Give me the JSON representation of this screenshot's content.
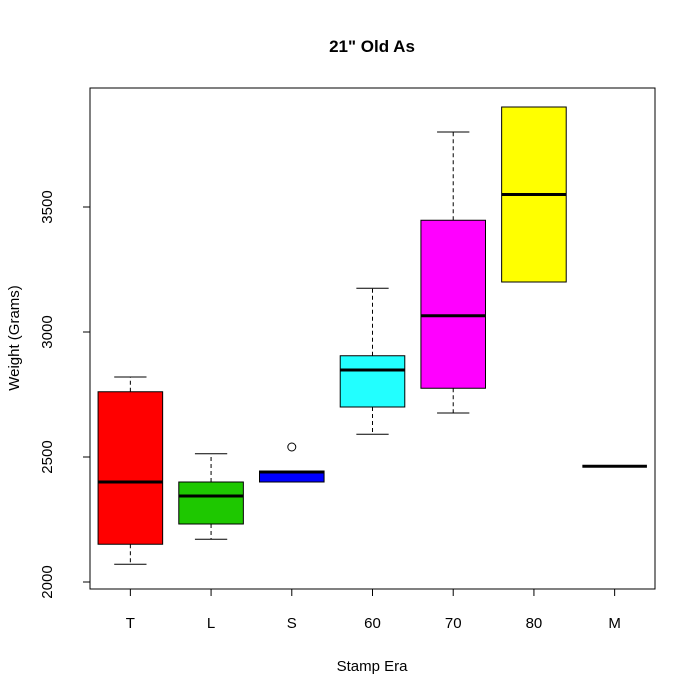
{
  "chart_data": {
    "type": "boxplot",
    "title": "21\" Old As",
    "xlabel": "Stamp Era",
    "ylabel": "Weight (Grams)",
    "ylim": [
      1972,
      3976
    ],
    "yticks": [
      2000,
      2500,
      3000,
      3500
    ],
    "ytick_labels": [
      "2000",
      "2500",
      "3000",
      "3500"
    ],
    "grid": false,
    "categories": [
      "T",
      "L",
      "S",
      "60",
      "70",
      "80",
      "M"
    ],
    "boxes": [
      {
        "category": "T",
        "whisker_low": 2071,
        "q1": 2151,
        "median": 2400,
        "q3": 2761,
        "whisker_high": 2820,
        "outliers": [],
        "color": "#ff0000"
      },
      {
        "category": "L",
        "whisker_low": 2171,
        "q1": 2232,
        "median": 2344,
        "q3": 2400,
        "whisker_high": 2513,
        "outliers": [],
        "color": "#1ec800"
      },
      {
        "category": "S",
        "whisker_low": 2400,
        "q1": 2400,
        "median": 2440,
        "q3": 2444,
        "whisker_high": 2444,
        "outliers": [
          2540
        ],
        "color": "#0000ff"
      },
      {
        "category": "60",
        "whisker_low": 2591,
        "q1": 2700,
        "median": 2848,
        "q3": 2905,
        "whisker_high": 3175,
        "outliers": [],
        "color": "#22ffff"
      },
      {
        "category": "70",
        "whisker_low": 2676,
        "q1": 2775,
        "median": 3065,
        "q3": 3447,
        "whisker_high": 3800,
        "outliers": [],
        "color": "#ff00ff"
      },
      {
        "category": "80",
        "whisker_low": 3200,
        "q1": 3200,
        "median": 3550,
        "q3": 3900,
        "whisker_high": 3900,
        "outliers": [],
        "color": "#ffff00"
      },
      {
        "category": "M",
        "whisker_low": 2463,
        "q1": 2463,
        "median": 2463,
        "q3": 2463,
        "whisker_high": 2463,
        "outliers": [],
        "color": "#000000"
      }
    ]
  }
}
